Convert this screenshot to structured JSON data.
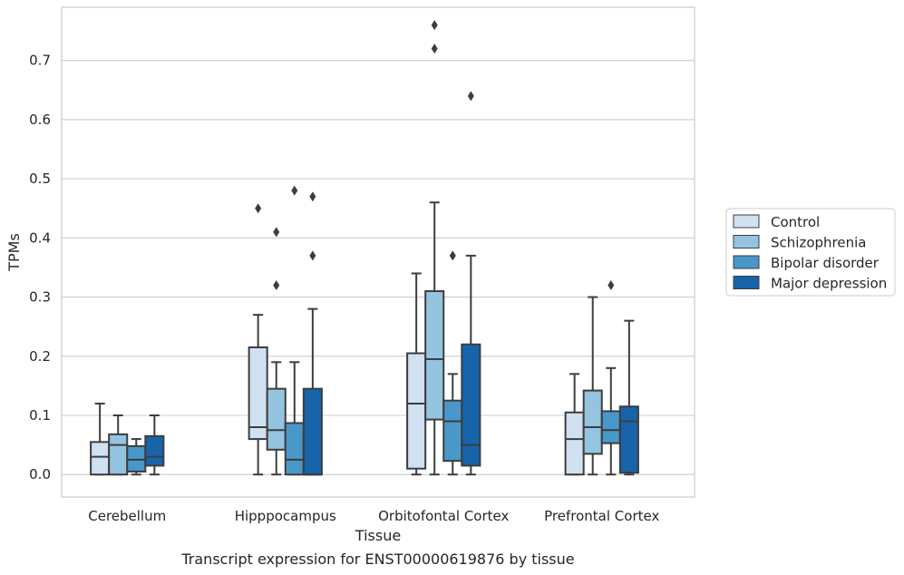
{
  "chart_data": {
    "type": "boxplot",
    "xlabel": "Tissue",
    "ylabel": "TPMs",
    "caption": "Transcript expression for ENST00000619876 by tissue",
    "ylim": [
      -0.038,
      0.79
    ],
    "yticks": [
      0.0,
      0.1,
      0.2,
      0.3,
      0.4,
      0.5,
      0.6,
      0.7
    ],
    "ytick_labels": [
      "0.0",
      "0.1",
      "0.2",
      "0.3",
      "0.4",
      "0.5",
      "0.6",
      "0.7"
    ],
    "grid": "horizontal",
    "legend_position": "right",
    "categories": [
      "Cerebellum",
      "Hipppocampus",
      "Orbitofontal Cortex",
      "Prefrontal Cortex"
    ],
    "series": [
      {
        "name": "Control",
        "color": "#d0e1f2",
        "boxes": [
          {
            "whislo": 0.0,
            "q1": 0.0,
            "med": 0.03,
            "q3": 0.055,
            "whishi": 0.12,
            "fliers": []
          },
          {
            "whislo": 0.0,
            "q1": 0.06,
            "med": 0.08,
            "q3": 0.215,
            "whishi": 0.27,
            "fliers": [
              0.45
            ]
          },
          {
            "whislo": 0.0,
            "q1": 0.01,
            "med": 0.12,
            "q3": 0.205,
            "whishi": 0.34,
            "fliers": []
          },
          {
            "whislo": 0.0,
            "q1": 0.0,
            "med": 0.06,
            "q3": 0.105,
            "whishi": 0.17,
            "fliers": []
          }
        ]
      },
      {
        "name": "Schizophrenia",
        "color": "#94c4df",
        "boxes": [
          {
            "whislo": 0.0,
            "q1": 0.0,
            "med": 0.05,
            "q3": 0.068,
            "whishi": 0.1,
            "fliers": []
          },
          {
            "whislo": 0.0,
            "q1": 0.042,
            "med": 0.075,
            "q3": 0.145,
            "whishi": 0.19,
            "fliers": [
              0.41,
              0.32
            ]
          },
          {
            "whislo": 0.0,
            "q1": 0.093,
            "med": 0.195,
            "q3": 0.31,
            "whishi": 0.46,
            "fliers": [
              0.76,
              0.72
            ]
          },
          {
            "whislo": 0.0,
            "q1": 0.035,
            "med": 0.08,
            "q3": 0.142,
            "whishi": 0.3,
            "fliers": []
          }
        ]
      },
      {
        "name": "Bipolar disorder",
        "color": "#4a98c9",
        "boxes": [
          {
            "whislo": 0.0,
            "q1": 0.005,
            "med": 0.025,
            "q3": 0.048,
            "whishi": 0.06,
            "fliers": []
          },
          {
            "whislo": 0.0,
            "q1": 0.0,
            "med": 0.025,
            "q3": 0.087,
            "whishi": 0.19,
            "fliers": [
              0.48
            ]
          },
          {
            "whislo": 0.0,
            "q1": 0.023,
            "med": 0.09,
            "q3": 0.125,
            "whishi": 0.17,
            "fliers": [
              0.37
            ]
          },
          {
            "whislo": 0.0,
            "q1": 0.053,
            "med": 0.075,
            "q3": 0.107,
            "whishi": 0.18,
            "fliers": [
              0.32
            ]
          }
        ]
      },
      {
        "name": "Major depression",
        "color": "#1764ab",
        "boxes": [
          {
            "whislo": 0.0,
            "q1": 0.015,
            "med": 0.03,
            "q3": 0.065,
            "whishi": 0.1,
            "fliers": []
          },
          {
            "whislo": 0.0,
            "q1": 0.0,
            "med": 0.0,
            "q3": 0.145,
            "whishi": 0.28,
            "fliers": [
              0.47,
              0.37
            ]
          },
          {
            "whislo": 0.0,
            "q1": 0.015,
            "med": 0.05,
            "q3": 0.22,
            "whishi": 0.37,
            "fliers": [
              0.64
            ]
          },
          {
            "whislo": 0.0,
            "q1": 0.003,
            "med": 0.09,
            "q3": 0.115,
            "whishi": 0.26,
            "fliers": []
          }
        ]
      }
    ]
  }
}
